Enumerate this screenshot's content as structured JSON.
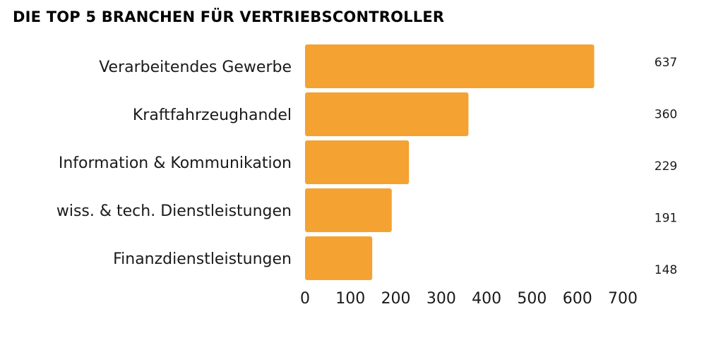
{
  "chart_data": {
    "type": "bar",
    "orientation": "horizontal",
    "title": "DIE TOP 5 BRANCHEN FÜR VERTRIEBSCONTROLLER",
    "categories": [
      "Verarbeitendes Gewerbe",
      "Kraftfahrzeughandel",
      "Information & Kommunikation",
      "wiss. & tech. Dienstleistungen",
      "Finanzdienstleistungen"
    ],
    "values": [
      637,
      360,
      229,
      191,
      148
    ],
    "value_labels": [
      "637",
      "360",
      "229",
      "191",
      "148"
    ],
    "xlim": [
      0,
      700
    ],
    "x_ticks": [
      0,
      100,
      200,
      300,
      400,
      500,
      600,
      700
    ],
    "x_tick_labels": [
      "0",
      "100",
      "200",
      "300",
      "400",
      "500",
      "600",
      "700"
    ],
    "bar_color": "#F4A232",
    "grid": false,
    "legend": "none"
  }
}
